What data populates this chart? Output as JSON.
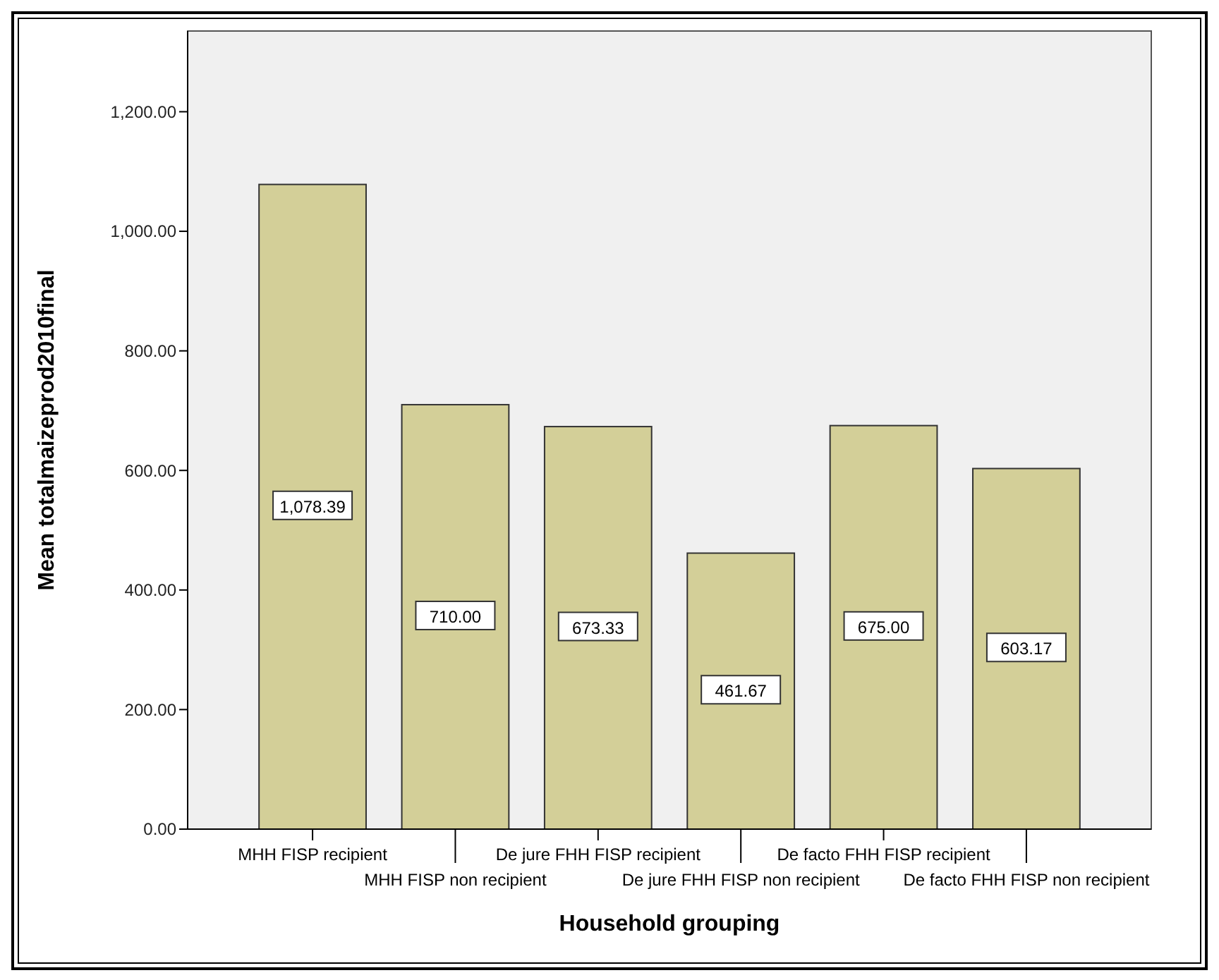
{
  "chart_data": {
    "type": "bar",
    "xlabel": "Household grouping",
    "ylabel": "Mean totalmaizeprod2010final",
    "categories": [
      "MHH FISP recipient",
      "MHH FISP non recipient",
      "De jure FHH FISP recipient",
      "De jure FHH FISP non recipient",
      "De facto FHH FISP recipient",
      "De facto FHH FISP non recipient"
    ],
    "values": [
      1078.39,
      710.0,
      673.33,
      461.67,
      675.0,
      603.17
    ],
    "color": "#d3cf98",
    "value_labels": [
      "1,078.39",
      "710.00",
      "673.33",
      "461.67",
      "675.00",
      "603.17"
    ],
    "grid": false,
    "ylim": [
      0,
      1335
    ],
    "yticks": [
      {
        "value": 0,
        "label": "0.00"
      },
      {
        "value": 200,
        "label": "200.00"
      },
      {
        "value": 400,
        "label": "400.00"
      },
      {
        "value": 600,
        "label": "600.00"
      },
      {
        "value": 800,
        "label": "800.00"
      },
      {
        "value": 1000,
        "label": "1,000.00"
      },
      {
        "value": 1200,
        "label": "1,200.00"
      }
    ]
  }
}
